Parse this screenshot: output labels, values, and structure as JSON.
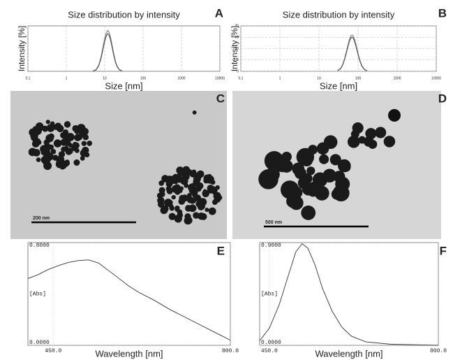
{
  "chart_data": [
    {
      "type": "line",
      "panel_label": "A",
      "title": "Size distribution by intensity",
      "x_label": "Size [nm]",
      "y_label": "Intensity [%]",
      "xlog": true,
      "xlim": [
        0.1,
        10000
      ],
      "xticks": [
        0.1,
        1,
        10,
        100,
        1000,
        10000
      ],
      "ylim": [
        0,
        20
      ],
      "grid": true,
      "x": [
        5,
        6,
        7,
        8,
        9,
        10,
        11,
        12,
        13,
        14,
        15,
        17,
        19,
        21,
        24,
        28
      ],
      "series": [
        {
          "color": "#888888",
          "values": [
            0.1,
            0.8,
            2.7,
            6.1,
            10.5,
            14.4,
            17.1,
            18,
            17.2,
            15.4,
            13,
            8.1,
            4.5,
            2.3,
            0.8,
            0.2
          ]
        },
        {
          "color": "#555555",
          "values": [
            0.1,
            0.7,
            2.5,
            5.6,
            9.7,
            13.2,
            15.7,
            16.6,
            15.8,
            14.2,
            12,
            7.5,
            4.1,
            2.1,
            0.7,
            0.2
          ]
        }
      ]
    },
    {
      "type": "line",
      "panel_label": "B",
      "title": "Size distribution by intensity",
      "x_label": "Size [nm]",
      "y_label": "Intensity [%]",
      "xlog": true,
      "xlim": [
        0.1,
        10000
      ],
      "xticks": [
        0.1,
        1,
        10,
        100,
        1000,
        10000
      ],
      "ylim": [
        0,
        20
      ],
      "yticks": [
        0,
        5,
        10,
        15,
        20
      ],
      "grid": true,
      "x": [
        30,
        35,
        40,
        45,
        50,
        55,
        60,
        65,
        70,
        75,
        80,
        90,
        100,
        110,
        125,
        145,
        170
      ],
      "series": [
        {
          "color": "#888888",
          "values": [
            0.3,
            1.1,
            2.8,
            5.4,
            8.5,
            11.5,
            14,
            15.5,
            16,
            15.6,
            14.4,
            11.3,
            7.8,
            5.1,
            2.4,
            0.8,
            0.2
          ]
        },
        {
          "color": "#555555",
          "values": [
            0.3,
            1,
            2.6,
            5.1,
            8,
            10.8,
            13.2,
            14.6,
            15,
            14.7,
            13.5,
            10.6,
            7.3,
            4.8,
            2.3,
            0.8,
            0.2
          ]
        }
      ]
    },
    {
      "type": "line",
      "panel_label": "E",
      "x_label": "Wavelength [nm]",
      "y_label": "[Abs]",
      "xlim": [
        400,
        800
      ],
      "xticks": [
        {
          "value": 450,
          "label": "450.0"
        },
        {
          "value": 800,
          "label": "800.0"
        }
      ],
      "ylim": [
        0,
        0.8
      ],
      "yticks": [
        {
          "value": 0,
          "label": "0.0000"
        },
        {
          "value": 0.8,
          "label": "0.8000"
        }
      ],
      "grid": true,
      "x": [
        400,
        420,
        440,
        460,
        480,
        500,
        520,
        540,
        560,
        580,
        600,
        620,
        650,
        680,
        700,
        740,
        780,
        800
      ],
      "series": [
        {
          "color": "#333333",
          "values": [
            0.52,
            0.55,
            0.59,
            0.62,
            0.645,
            0.66,
            0.665,
            0.64,
            0.58,
            0.52,
            0.46,
            0.41,
            0.35,
            0.28,
            0.24,
            0.16,
            0.08,
            0.04
          ]
        }
      ]
    },
    {
      "type": "line",
      "panel_label": "F",
      "x_label": "Wavelength [nm]",
      "y_label": "[Abs]",
      "xlim": [
        430,
        800
      ],
      "xticks": [
        {
          "value": 450,
          "label": "450.0"
        },
        {
          "value": 800,
          "label": "800.0"
        }
      ],
      "ylim": [
        0,
        0.9
      ],
      "yticks": [
        {
          "value": 0,
          "label": "0.0000"
        },
        {
          "value": 0.9,
          "label": "0.9000"
        }
      ],
      "grid": true,
      "x": [
        430,
        450,
        470,
        490,
        505,
        518,
        530,
        545,
        560,
        580,
        600,
        620,
        650,
        700,
        750,
        800
      ],
      "series": [
        {
          "color": "#333333",
          "values": [
            0.04,
            0.15,
            0.35,
            0.62,
            0.82,
            0.89,
            0.85,
            0.7,
            0.5,
            0.3,
            0.16,
            0.08,
            0.03,
            0.01,
            0.005,
            0
          ]
        }
      ]
    }
  ],
  "micrographs": [
    {
      "panel_label": "C",
      "scale_bar": "200 nm"
    },
    {
      "panel_label": "D",
      "scale_bar": "500 nm"
    }
  ]
}
